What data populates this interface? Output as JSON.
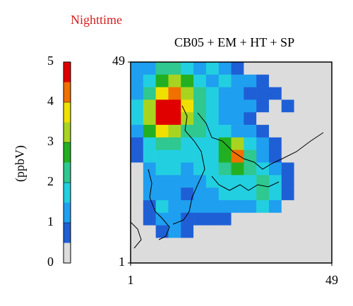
{
  "chart_data": {
    "type": "heatmap",
    "subtitle": "Nighttime",
    "title": "CB05 + EM + HT + SP",
    "colorbar_label": "(ppbV)",
    "xlim": [
      1,
      49
    ],
    "ylim": [
      1,
      49
    ],
    "xticks": [
      1,
      49
    ],
    "yticks": [
      1,
      49
    ],
    "levels": [
      0,
      0.5,
      1,
      1.5,
      2,
      2.5,
      3,
      3.5,
      4,
      4.5,
      5
    ],
    "colors": [
      "#dcdcdc",
      "#1f5fd6",
      "#1f9fef",
      "#22cfe0",
      "#2ec890",
      "#22b022",
      "#a8d420",
      "#f0e000",
      "#f07000",
      "#e00000"
    ],
    "cbar_ticks": [
      0,
      1,
      2,
      3,
      4,
      5
    ],
    "z": [
      [
        1.2,
        1,
        2,
        2.2,
        1.5,
        1.2,
        1.5,
        1,
        0.8,
        0,
        0,
        0,
        0,
        0,
        0,
        0
      ],
      [
        1,
        1.5,
        2.5,
        3,
        2.5,
        1.8,
        1.2,
        1.5,
        1.2,
        1,
        0.8,
        0,
        0,
        0,
        0,
        0
      ],
      [
        1.2,
        2,
        3.5,
        4.2,
        3,
        2.2,
        1.5,
        1.2,
        1,
        0.8,
        0.8,
        0.8,
        0,
        0,
        0,
        0
      ],
      [
        1.5,
        3,
        4.8,
        4.8,
        3.5,
        2,
        1.5,
        1.2,
        1.2,
        1,
        0.8,
        0,
        0.8,
        0,
        0,
        0
      ],
      [
        1.5,
        3.2,
        4.8,
        4.6,
        3,
        2,
        1.5,
        1.2,
        1,
        0.8,
        0,
        0,
        0,
        0,
        0,
        0
      ],
      [
        1,
        2.5,
        3.5,
        3,
        2.2,
        2,
        1.5,
        1.5,
        1.2,
        1,
        0.8,
        0,
        0,
        0,
        0,
        0
      ],
      [
        0.8,
        1.8,
        2.2,
        2,
        1.8,
        1.5,
        1.5,
        2.5,
        3,
        1.5,
        1,
        0.8,
        0,
        0,
        0,
        0
      ],
      [
        0.8,
        1.5,
        1.8,
        1.8,
        1.5,
        1.5,
        1.8,
        2.8,
        4.2,
        2.2,
        1.2,
        0.8,
        0,
        0,
        0,
        0
      ],
      [
        0,
        1.2,
        1.5,
        1.5,
        1.2,
        1.5,
        1.8,
        2,
        2.8,
        2.2,
        1.5,
        1,
        0.8,
        0,
        0,
        0
      ],
      [
        0,
        1,
        1.2,
        1.2,
        1,
        1.2,
        1.5,
        1.5,
        1.8,
        1.8,
        2,
        1.5,
        0.8,
        0,
        0,
        0
      ],
      [
        0,
        1,
        1.2,
        1,
        0.8,
        1,
        1.2,
        1.5,
        1.5,
        1.8,
        2.2,
        1.5,
        0.8,
        0,
        0,
        0
      ],
      [
        0,
        0.8,
        1.5,
        1.2,
        1,
        1,
        1.2,
        1,
        1,
        1.2,
        1.5,
        1,
        0,
        0,
        0,
        0
      ],
      [
        0,
        0.8,
        1.2,
        1.2,
        0.8,
        0.8,
        0.8,
        0.8,
        0,
        0,
        0,
        0,
        0,
        0,
        0,
        0
      ],
      [
        0,
        0,
        0.8,
        1,
        0.8,
        0,
        0,
        0,
        0,
        0,
        0,
        0,
        0,
        0,
        0,
        0
      ],
      [
        0,
        0,
        0,
        0,
        0,
        0,
        0,
        0,
        0,
        0,
        0,
        0,
        0,
        0,
        0,
        0
      ],
      [
        0,
        0,
        0,
        0,
        0,
        0,
        0,
        0,
        0,
        0,
        0,
        0,
        0,
        0,
        0,
        0
      ]
    ]
  }
}
